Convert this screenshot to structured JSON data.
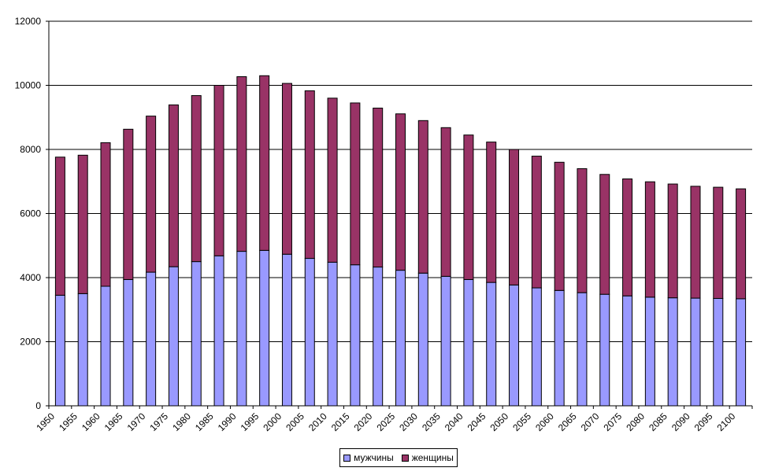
{
  "chart_data": {
    "type": "bar",
    "stacked": true,
    "categories": [
      "1950",
      "1955",
      "1960",
      "1965",
      "1970",
      "1975",
      "1980",
      "1985",
      "1990",
      "1995",
      "2000",
      "2005",
      "2010",
      "2015",
      "2020",
      "2025",
      "2030",
      "2035",
      "2040",
      "2045",
      "2050",
      "2055",
      "2060",
      "2065",
      "2070",
      "2075",
      "2080",
      "2085",
      "2090",
      "2095",
      "2100"
    ],
    "series": [
      {
        "name": "мужчины",
        "color": "#9999ff",
        "values": [
          3450,
          3500,
          3730,
          3940,
          4170,
          4340,
          4500,
          4680,
          4820,
          4850,
          4730,
          4600,
          4480,
          4400,
          4330,
          4230,
          4140,
          4040,
          3940,
          3850,
          3770,
          3680,
          3600,
          3530,
          3480,
          3430,
          3390,
          3370,
          3360,
          3350,
          3340
        ]
      },
      {
        "name": "женщины",
        "color": "#993366",
        "values": [
          4310,
          4320,
          4480,
          4690,
          4870,
          5050,
          5180,
          5320,
          5450,
          5450,
          5330,
          5230,
          5120,
          5050,
          4960,
          4880,
          4760,
          4640,
          4510,
          4380,
          4230,
          4110,
          4000,
          3870,
          3740,
          3650,
          3600,
          3550,
          3490,
          3470,
          3430
        ]
      }
    ],
    "ylim": [
      0,
      12000
    ],
    "yticks": [
      "0",
      "2000",
      "4000",
      "6000",
      "8000",
      "10000",
      "12000"
    ],
    "grid": true,
    "legend_position": "bottom"
  },
  "colors": {
    "grid": "#000000",
    "bar_outline": "#000000"
  }
}
